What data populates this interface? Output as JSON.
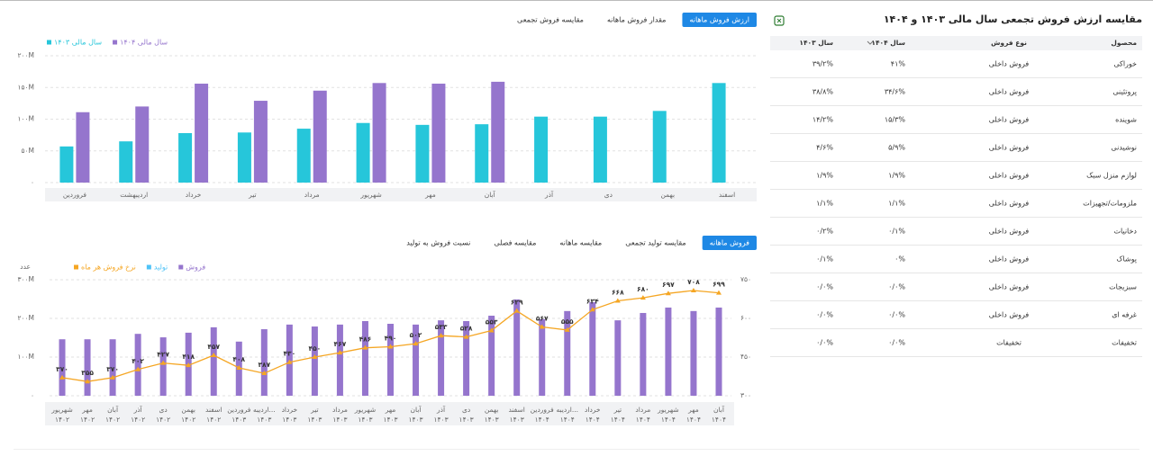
{
  "chart_data": [
    {
      "type": "bar",
      "tabs": [
        "ارزش فروش ماهانه",
        "مقدار فروش ماهانه",
        "مقایسه فروش تجمعی"
      ],
      "active_tab": 0,
      "categories": [
        "فروردین",
        "اردیبهشت",
        "خرداد",
        "تیر",
        "مرداد",
        "شهریور",
        "مهر",
        "آبان",
        "آذر",
        "دی",
        "بهمن",
        "اسفند"
      ],
      "series": [
        {
          "name": "سال مالی ۱۴۰۳",
          "color": "#26c6da",
          "values": [
            57000000,
            65000000,
            78000000,
            79000000,
            85000000,
            94000000,
            91000000,
            92000000,
            104000000,
            104000000,
            113000000,
            157000000
          ]
        },
        {
          "name": "سال مالی ۱۴۰۴",
          "color": "#9575cd",
          "values": [
            111000000,
            120000000,
            156000000,
            129000000,
            145000000,
            157000000,
            156000000,
            159000000,
            null,
            null,
            null,
            null
          ]
        }
      ],
      "ylim": [
        0,
        200000000
      ],
      "yticks": [
        {
          "value": 0,
          "label": "۰"
        },
        {
          "value": 50000000,
          "label": "۵۰M"
        },
        {
          "value": 100000000,
          "label": "۱۰۰M"
        },
        {
          "value": 150000000,
          "label": "۱۵۰M"
        },
        {
          "value": 200000000,
          "label": "۲۰۰M"
        }
      ],
      "grid": true
    },
    {
      "type": "combo",
      "tabs": [
        "فروش ماهانه",
        "مقایسه تولید تجمعی",
        "مقایسه ماهانه",
        "مقایسه فصلی",
        "نسبت فروش به تولید"
      ],
      "active_tab": 0,
      "y_label": "عدد",
      "categories": [
        [
          "شهریور",
          "۱۴۰۲"
        ],
        [
          "مهر",
          "۱۴۰۲"
        ],
        [
          "آبان",
          "۱۴۰۲"
        ],
        [
          "آذر",
          "۱۴۰۲"
        ],
        [
          "دی",
          "۱۴۰۲"
        ],
        [
          "بهمن",
          "۱۴۰۲"
        ],
        [
          "اسفند",
          "۱۴۰۲"
        ],
        [
          "فروردین",
          "۱۴۰۳"
        ],
        [
          "اردیبه...",
          "۱۴۰۳"
        ],
        [
          "خرداد",
          "۱۴۰۳"
        ],
        [
          "تیر",
          "۱۴۰۳"
        ],
        [
          "مرداد",
          "۱۴۰۳"
        ],
        [
          "شهریور",
          "۱۴۰۳"
        ],
        [
          "مهر",
          "۱۴۰۳"
        ],
        [
          "آبان",
          "۱۴۰۳"
        ],
        [
          "آذر",
          "۱۴۰۳"
        ],
        [
          "دی",
          "۱۴۰۳"
        ],
        [
          "بهمن",
          "۱۴۰۳"
        ],
        [
          "اسفند",
          "۱۴۰۳"
        ],
        [
          "فروردین",
          "۱۴۰۴"
        ],
        [
          "اردیبه...",
          "۱۴۰۴"
        ],
        [
          "خرداد",
          "۱۴۰۴"
        ],
        [
          "تیر",
          "۱۴۰۴"
        ],
        [
          "مرداد",
          "۱۴۰۴"
        ],
        [
          "شهریور",
          "۱۴۰۴"
        ],
        [
          "مهر",
          "۱۴۰۴"
        ],
        [
          "آبان",
          "۱۴۰۴"
        ]
      ],
      "series": [
        {
          "name": "فروش",
          "color": "#9575cd",
          "kind": "bar",
          "values": [
            146000000,
            146000000,
            146000000,
            160000000,
            151000000,
            163000000,
            177000000,
            140000000,
            172000000,
            184000000,
            179000000,
            184000000,
            193000000,
            186000000,
            184000000,
            195000000,
            193000000,
            207000000,
            249000000,
            198000000,
            219000000,
            242000000,
            195000000,
            214000000,
            228000000,
            219000000,
            228000000
          ]
        },
        {
          "name": "تولید",
          "color": "#4fc3f7",
          "kind": "bar",
          "values": [
            null,
            null,
            null,
            null,
            null,
            null,
            null,
            null,
            null,
            null,
            null,
            null,
            null,
            null,
            null,
            null,
            null,
            null,
            null,
            null,
            null,
            null,
            null,
            null,
            null,
            null,
            null
          ]
        },
        {
          "name": "نرخ فروش هر ماه",
          "color": "#f5a623",
          "kind": "line",
          "axis": "y2",
          "values": [
            370,
            355,
            370,
            402,
            427,
            418,
            457,
            408,
            387,
            430,
            450,
            467,
            486,
            490,
            502,
            533,
            528,
            553,
            629,
            567,
            555,
            634,
            668,
            680,
            697,
            708,
            699
          ],
          "value_labels": [
            "۳۷۰",
            "۳۵۵",
            "۳۷۰",
            "۴۰۲",
            "۴۲۷",
            "۴۱۸",
            "۴۵۷",
            "۴۰۸",
            "۳۸۷",
            "۴۳۰",
            "۴۵۰",
            "۴۶۷",
            "۴۸۶",
            "۴۹۰",
            "۵۰۲",
            "۵۳۳",
            "۵۲۸",
            "۵۵۳",
            "۶۲۹",
            "۵۶۷",
            "۵۵۵",
            "۶۳۴",
            "۶۶۸",
            "۶۸۰",
            "۶۹۷",
            "۷۰۸",
            "۶۹۹"
          ]
        }
      ],
      "ylim": [
        0,
        300000000
      ],
      "yticks": [
        {
          "value": 0,
          "label": "۰"
        },
        {
          "value": 100000000,
          "label": "۱۰۰M"
        },
        {
          "value": 200000000,
          "label": "۲۰۰M"
        },
        {
          "value": 300000000,
          "label": "۳۰۰M"
        }
      ],
      "y2lim": [
        300,
        750
      ],
      "y2ticks": [
        {
          "value": 300,
          "label": "۳۰۰"
        },
        {
          "value": 450,
          "label": "۴۵۰"
        },
        {
          "value": 600,
          "label": "۶۰۰"
        },
        {
          "value": 750,
          "label": "۷۵۰"
        }
      ],
      "grid": true
    }
  ],
  "table": {
    "title": "مقایسه ارزش فروش تجمعی سال مالی ۱۴۰۳ و ۱۴۰۴",
    "columns": [
      "محصول",
      "نوع فروش",
      "سال ۱۴۰۴",
      "سال ۱۴۰۳"
    ],
    "rows": [
      [
        "خوراکی",
        "فروش داخلی",
        "۴۱%",
        "۳۹/۲%"
      ],
      [
        "پروتئینی",
        "فروش داخلی",
        "۳۴/۶%",
        "۳۸/۸%"
      ],
      [
        "شوینده",
        "فروش داخلی",
        "۱۵/۳%",
        "۱۴/۲%"
      ],
      [
        "نوشیدنی",
        "فروش داخلی",
        "۵/۹%",
        "۴/۶%"
      ],
      [
        "لوازم منزل سبک",
        "فروش داخلی",
        "۱/۹%",
        "۱/۹%"
      ],
      [
        "ملزومات/تجهیزات",
        "فروش داخلی",
        "۱/۱%",
        "۱/۱%"
      ],
      [
        "دخانیات",
        "فروش داخلی",
        "۰/۱%",
        "۰/۲%"
      ],
      [
        "پوشاک",
        "فروش داخلی",
        "۰%",
        "۰/۱%"
      ],
      [
        "سبزیجات",
        "فروش داخلی",
        "۰/۰%",
        "۰/۰%"
      ],
      [
        "غرفه ای",
        "فروش داخلی",
        "۰/۰%",
        "۰/۰%"
      ],
      [
        "تخفیفات",
        "تخفیفات",
        "۰/۰%",
        "۰/۰%"
      ]
    ]
  }
}
